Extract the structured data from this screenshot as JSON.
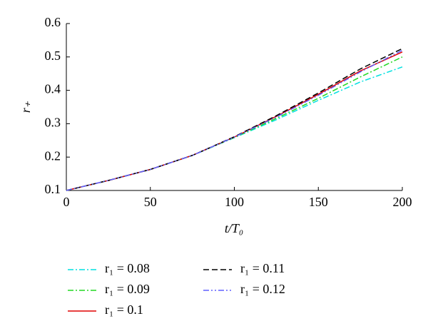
{
  "chart_data": {
    "type": "line",
    "xlabel": "t/T₀",
    "ylabel": "r₊",
    "x": [
      0,
      25,
      50,
      75,
      100,
      125,
      150,
      175,
      200
    ],
    "series": [
      {
        "name": "r₁ = 0.08",
        "color": "#00e0e0",
        "linestyle": "dashdot",
        "values": [
          0.1,
          0.13,
          0.163,
          0.205,
          0.258,
          0.312,
          0.37,
          0.425,
          0.47
        ]
      },
      {
        "name": "r₁ = 0.09",
        "color": "#22d822",
        "linestyle": "dashdot",
        "values": [
          0.1,
          0.13,
          0.163,
          0.205,
          0.259,
          0.316,
          0.376,
          0.44,
          0.5
        ]
      },
      {
        "name": "r₁ = 0.1",
        "color": "#e00000",
        "linestyle": "solid",
        "values": [
          0.1,
          0.13,
          0.163,
          0.205,
          0.26,
          0.322,
          0.388,
          0.458,
          0.515
        ]
      },
      {
        "name": "r₁ = 0.11",
        "color": "#000000",
        "linestyle": "dashed",
        "values": [
          0.1,
          0.13,
          0.163,
          0.205,
          0.261,
          0.324,
          0.392,
          0.464,
          0.525
        ]
      },
      {
        "name": "r₁ = 0.12",
        "color": "#6060ff",
        "linestyle": "dashdotdot",
        "values": [
          0.1,
          0.13,
          0.163,
          0.205,
          0.26,
          0.32,
          0.385,
          0.455,
          0.52
        ]
      }
    ],
    "xlim": [
      0,
      200
    ],
    "xticks": [
      0,
      50,
      100,
      150,
      200
    ],
    "ylim": [
      0.1,
      0.6
    ],
    "yticks": [
      0.1,
      0.2,
      0.3,
      0.4,
      0.5,
      0.6
    ],
    "grid": false
  }
}
